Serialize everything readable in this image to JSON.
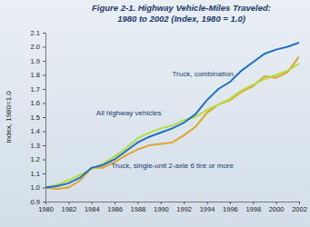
{
  "chart_data": {
    "type": "line",
    "title": "Figure 2-1. Highway Vehicle-Miles Traveled:",
    "subtitle": "1980 to 2002 (Index, 1980 = 1.0)",
    "y_label": "Index, 1980=1.0",
    "x": [
      1980,
      1981,
      1982,
      1983,
      1984,
      1985,
      1986,
      1987,
      1988,
      1989,
      1990,
      1991,
      1992,
      1993,
      1994,
      1995,
      1996,
      1997,
      1998,
      1999,
      2000,
      2001,
      2002
    ],
    "series": [
      {
        "name": "Truck, combination",
        "color": "#1f6fc8",
        "values": [
          1.0,
          1.01,
          1.03,
          1.07,
          1.14,
          1.16,
          1.2,
          1.26,
          1.32,
          1.36,
          1.39,
          1.42,
          1.46,
          1.52,
          1.62,
          1.7,
          1.75,
          1.83,
          1.89,
          1.95,
          1.98,
          2.0,
          2.03
        ]
      },
      {
        "name": "All highway vehicles",
        "color": "#b4dc3c",
        "values": [
          1.0,
          1.02,
          1.05,
          1.09,
          1.13,
          1.17,
          1.22,
          1.28,
          1.35,
          1.39,
          1.42,
          1.44,
          1.48,
          1.5,
          1.55,
          1.59,
          1.63,
          1.69,
          1.73,
          1.77,
          1.8,
          1.83,
          1.88
        ]
      },
      {
        "name": "Truck, single-unit 2-axle 6 tire or more",
        "color": "#e3a42a",
        "values": [
          1.0,
          0.99,
          1.0,
          1.05,
          1.14,
          1.14,
          1.18,
          1.23,
          1.27,
          1.3,
          1.31,
          1.32,
          1.37,
          1.43,
          1.53,
          1.59,
          1.62,
          1.68,
          1.72,
          1.79,
          1.78,
          1.82,
          1.93
        ]
      }
    ],
    "xlim": [
      1980,
      2002
    ],
    "xticks": [
      1980,
      1982,
      1984,
      1986,
      1988,
      1990,
      1992,
      1994,
      1996,
      1998,
      2000,
      2002
    ],
    "ylim": [
      0.9,
      2.1
    ],
    "yticks": [
      0.9,
      {
        "value": 1.0,
        "label": "1.0"
      },
      1.1,
      1.2,
      1.3,
      1.4,
      1.5,
      1.6,
      1.7,
      1.8,
      1.9,
      {
        "value": 2.0,
        "label": "2.0"
      },
      2.1
    ],
    "grid": false
  }
}
